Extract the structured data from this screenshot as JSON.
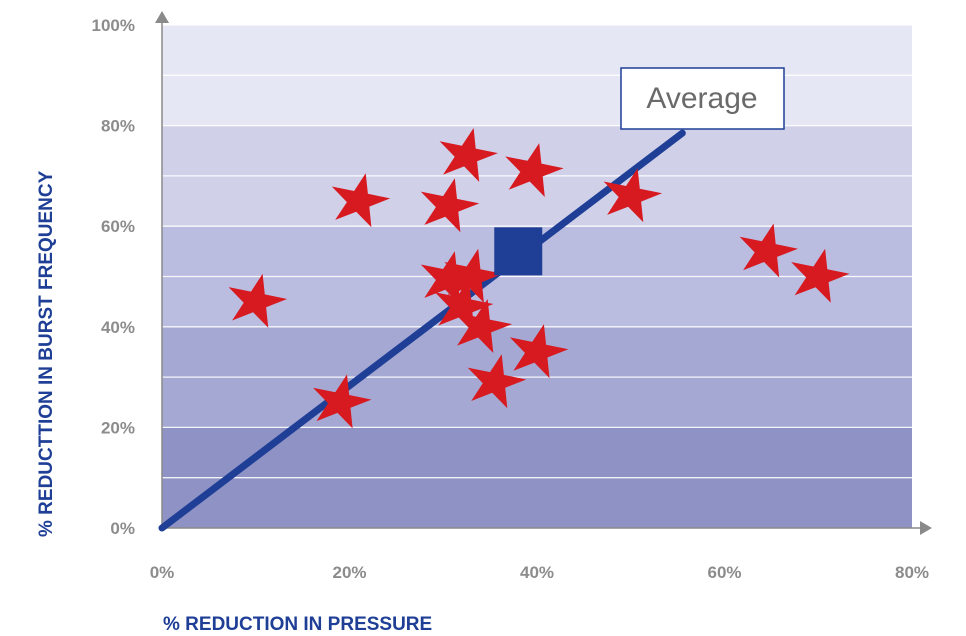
{
  "chart_data": {
    "type": "scatter",
    "xlabel": "% REDUCTION IN PRESSURE",
    "ylabel": "% REDUCTTION IN BURST FREQUENCY",
    "xlim": [
      0,
      80
    ],
    "ylim": [
      0,
      100
    ],
    "x_ticks": [
      "0%",
      "20%",
      "40%",
      "60%",
      "80%"
    ],
    "y_ticks": [
      "0%",
      "20%",
      "40%",
      "60%",
      "80%",
      "100%"
    ],
    "points": [
      {
        "x": 10,
        "y": 45
      },
      {
        "x": 19,
        "y": 25
      },
      {
        "x": 21,
        "y": 65
      },
      {
        "x": 30.5,
        "y": 64
      },
      {
        "x": 32.5,
        "y": 74
      },
      {
        "x": 39.5,
        "y": 71
      },
      {
        "x": 30.5,
        "y": 49.5
      },
      {
        "x": 33,
        "y": 50
      },
      {
        "x": 32,
        "y": 44
      },
      {
        "x": 34,
        "y": 40
      },
      {
        "x": 35.5,
        "y": 29
      },
      {
        "x": 40,
        "y": 35
      },
      {
        "x": 50,
        "y": 66
      },
      {
        "x": 64.5,
        "y": 55
      },
      {
        "x": 70,
        "y": 50
      }
    ],
    "average_point": {
      "x": 38,
      "y": 55
    },
    "average_line": {
      "x": [
        0,
        55.5
      ],
      "y": [
        0,
        78.5
      ]
    },
    "annotation": "Average",
    "grid": true,
    "colors": {
      "markers": "#d71920",
      "average": "#1f3f97",
      "axis_title": "#1f3f97",
      "tick": "#8c8c8c",
      "bands": [
        "#8e92c5",
        "#a5a8d2",
        "#bbbde0",
        "#d0d1e9",
        "#e6e7f4"
      ]
    }
  }
}
